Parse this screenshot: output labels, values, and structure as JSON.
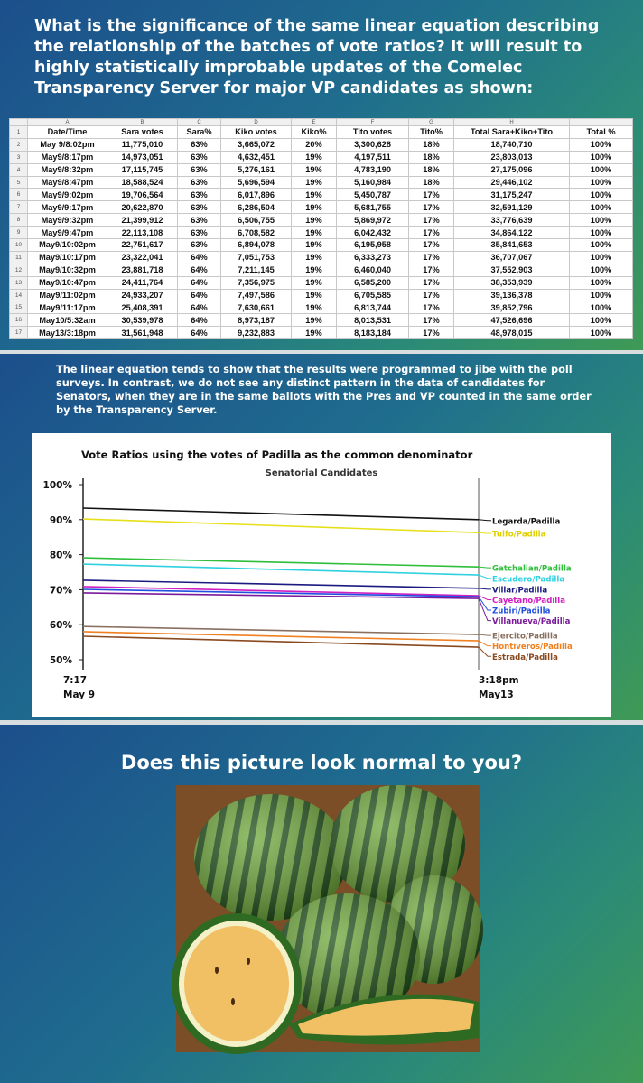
{
  "panel1": {
    "heading": "What is the significance of the same linear equation describing the relationship of the batches of vote ratios? It will result to highly statistically improbable updates of the Comelec Transparency Server for major VP candidates as shown:"
  },
  "spreadsheet": {
    "column_letters": [
      "A",
      "B",
      "C",
      "D",
      "E",
      "F",
      "G",
      "H",
      "I"
    ],
    "row_numbers": [
      1,
      2,
      3,
      4,
      5,
      6,
      7,
      8,
      9,
      10,
      11,
      12,
      13,
      14,
      15,
      16,
      17
    ],
    "rows": [
      [
        "Date/Time",
        "Sara votes",
        "Sara%",
        "Kiko votes",
        "Kiko%",
        "Tito votes",
        "Tito%",
        "Total Sara+Kiko+Tito",
        "Total %"
      ],
      [
        "May 9/8:02pm",
        "11,775,010",
        "63%",
        "3,665,072",
        "20%",
        "3,300,628",
        "18%",
        "18,740,710",
        "100%"
      ],
      [
        "May9/8:17pm",
        "14,973,051",
        "63%",
        "4,632,451",
        "19%",
        "4,197,511",
        "18%",
        "23,803,013",
        "100%"
      ],
      [
        "May9/8:32pm",
        "17,115,745",
        "63%",
        "5,276,161",
        "19%",
        "4,783,190",
        "18%",
        "27,175,096",
        "100%"
      ],
      [
        "May9/8:47pm",
        "18,588,524",
        "63%",
        "5,696,594",
        "19%",
        "5,160,984",
        "18%",
        "29,446,102",
        "100%"
      ],
      [
        "May9/9:02pm",
        "19,706,564",
        "63%",
        "6,017,896",
        "19%",
        "5,450,787",
        "17%",
        "31,175,247",
        "100%"
      ],
      [
        "May9/9:17pm",
        "20,622,870",
        "63%",
        "6,286,504",
        "19%",
        "5,681,755",
        "17%",
        "32,591,129",
        "100%"
      ],
      [
        "May9/9:32pm",
        "21,399,912",
        "63%",
        "6,506,755",
        "19%",
        "5,869,972",
        "17%",
        "33,776,639",
        "100%"
      ],
      [
        "May9/9:47pm",
        "22,113,108",
        "63%",
        "6,708,582",
        "19%",
        "6,042,432",
        "17%",
        "34,864,122",
        "100%"
      ],
      [
        "May9/10:02pm",
        "22,751,617",
        "63%",
        "6,894,078",
        "19%",
        "6,195,958",
        "17%",
        "35,841,653",
        "100%"
      ],
      [
        "May9/10:17pm",
        "23,322,041",
        "64%",
        "7,051,753",
        "19%",
        "6,333,273",
        "17%",
        "36,707,067",
        "100%"
      ],
      [
        "May9/10:32pm",
        "23,881,718",
        "64%",
        "7,211,145",
        "19%",
        "6,460,040",
        "17%",
        "37,552,903",
        "100%"
      ],
      [
        "May9/10:47pm",
        "24,411,764",
        "64%",
        "7,356,975",
        "19%",
        "6,585,200",
        "17%",
        "38,353,939",
        "100%"
      ],
      [
        "May9/11:02pm",
        "24,933,207",
        "64%",
        "7,497,586",
        "19%",
        "6,705,585",
        "17%",
        "39,136,378",
        "100%"
      ],
      [
        "May9/11:17pm",
        "25,408,391",
        "64%",
        "7,630,661",
        "19%",
        "6,813,744",
        "17%",
        "39,852,796",
        "100%"
      ],
      [
        "May10/5:32am",
        "30,539,978",
        "64%",
        "8,973,187",
        "19%",
        "8,013,531",
        "17%",
        "47,526,696",
        "100%"
      ],
      [
        "May13/3:18pm",
        "31,561,948",
        "64%",
        "9,232,883",
        "19%",
        "8,183,184",
        "17%",
        "48,978,015",
        "100%"
      ]
    ]
  },
  "panel2": {
    "text": "The linear equation tends to show that the results were programmed to jibe with the poll surveys. In contrast, we do not see any distinct pattern in the data of candidates for Senators, when they are in the same ballots with the Pres and VP counted in the same order by the Transparency Server."
  },
  "chart_data": {
    "type": "line",
    "title": "Vote Ratios using the votes of Padilla as the common denominator",
    "subtitle": "Senatorial Candidates",
    "categories": [
      "7:17",
      "3:18pm"
    ],
    "category_dates": [
      "May 9",
      "May13"
    ],
    "ylim": [
      50,
      100
    ],
    "yticks": [
      {
        "value": 100,
        "label": "100%"
      },
      {
        "value": 90,
        "label": "90%"
      },
      {
        "value": 80,
        "label": "80%"
      },
      {
        "value": 70,
        "label": "70%"
      },
      {
        "value": 60,
        "label": "60%"
      },
      {
        "value": 50,
        "label": "50%"
      }
    ],
    "series": [
      {
        "name": "Legarda/Padilla",
        "color": "#111111",
        "values": [
          93.3,
          90.0
        ]
      },
      {
        "name": "Tulfo/Padilla",
        "color": "#e6e01a",
        "values": [
          90.2,
          86.3
        ]
      },
      {
        "name": "Gatchalian/Padilla",
        "color": "#2fbf3a",
        "values": [
          79.1,
          76.5
        ]
      },
      {
        "name": "Escudero/Padilla",
        "color": "#2fd0e0",
        "values": [
          77.3,
          74.2
        ]
      },
      {
        "name": "Villar/Padilla",
        "color": "#1a1a80",
        "values": [
          72.7,
          70.4
        ]
      },
      {
        "name": "Cayetano/Padilla",
        "color": "#d020c0",
        "values": [
          70.9,
          68.3
        ]
      },
      {
        "name": "Zubiri/Padilla",
        "color": "#2050e0",
        "values": [
          70.1,
          68.0
        ]
      },
      {
        "name": "Villanueva/Padilla",
        "color": "#7a1a9a",
        "values": [
          69.1,
          67.5
        ]
      },
      {
        "name": "Ejercito/Padilla",
        "color": "#8a7060",
        "values": [
          59.5,
          57.2
        ]
      },
      {
        "name": "Hontiveros/Padilla",
        "color": "#f08020",
        "values": [
          58.0,
          55.4
        ]
      },
      {
        "name": "Estrada/Padilla",
        "color": "#8a4a20",
        "values": [
          56.7,
          53.6
        ]
      }
    ]
  },
  "panel3": {
    "heading": "Does this picture look normal to you?"
  }
}
